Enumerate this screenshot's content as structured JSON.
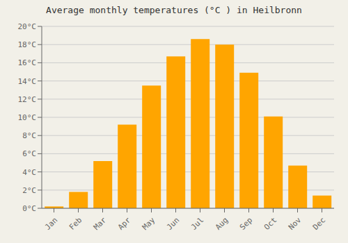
{
  "chart_data": {
    "type": "bar",
    "title": "Average monthly temperatures (°C ) in Heilbronn",
    "categories": [
      "Jan",
      "Feb",
      "Mar",
      "Apr",
      "May",
      "Jun",
      "Jul",
      "Aug",
      "Sep",
      "Oct",
      "Nov",
      "Dec"
    ],
    "values": [
      0.2,
      1.8,
      5.2,
      9.2,
      13.5,
      16.7,
      18.6,
      18.0,
      14.9,
      10.1,
      4.7,
      1.4
    ],
    "color": "#FFA500",
    "ylim": [
      0,
      20
    ],
    "yticks": [
      {
        "value": 0,
        "label": "0°C"
      },
      {
        "value": 2,
        "label": "2°C"
      },
      {
        "value": 4,
        "label": "4°C"
      },
      {
        "value": 6,
        "label": "6°C"
      },
      {
        "value": 8,
        "label": "8°C"
      },
      {
        "value": 10,
        "label": "10°C"
      },
      {
        "value": 12,
        "label": "12°C"
      },
      {
        "value": 14,
        "label": "14°C"
      },
      {
        "value": 16,
        "label": "16°C"
      },
      {
        "value": 18,
        "label": "18°C"
      },
      {
        "value": 20,
        "label": "20°C"
      }
    ],
    "grid": true
  }
}
